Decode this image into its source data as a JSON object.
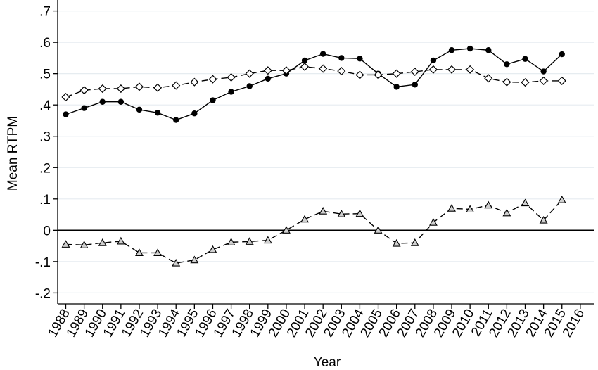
{
  "chart_data": {
    "type": "line",
    "title": "",
    "xlabel": "Year",
    "ylabel": "Mean RTPM",
    "x": [
      1988,
      1989,
      1990,
      1991,
      1992,
      1993,
      1994,
      1995,
      1996,
      1997,
      1998,
      1999,
      2000,
      2001,
      2002,
      2003,
      2004,
      2005,
      2006,
      2007,
      2008,
      2009,
      2010,
      2011,
      2012,
      2013,
      2014,
      2015
    ],
    "x_ticks": [
      "1988",
      "1989",
      "1990",
      "1991",
      "1992",
      "1993",
      "1994",
      "1995",
      "1996",
      "1997",
      "1998",
      "1999",
      "2000",
      "2001",
      "2002",
      "2003",
      "2004",
      "2005",
      "2006",
      "2007",
      "2008",
      "2009",
      "2010",
      "2011",
      "2012",
      "2013",
      "2014",
      "2015",
      "2016"
    ],
    "xlim": [
      1988,
      2016
    ],
    "y_ticks": [
      {
        "value": -0.2,
        "label": "-.2"
      },
      {
        "value": -0.1,
        "label": "-.1"
      },
      {
        "value": 0,
        "label": "0"
      },
      {
        "value": 0.1,
        "label": ".1"
      },
      {
        "value": 0.2,
        "label": ".2"
      },
      {
        "value": 0.3,
        "label": ".3"
      },
      {
        "value": 0.4,
        "label": ".4"
      },
      {
        "value": 0.5,
        "label": ".5"
      },
      {
        "value": 0.6,
        "label": ".6"
      },
      {
        "value": 0.7,
        "label": ".7"
      }
    ],
    "ylim": [
      -0.235,
      0.735
    ],
    "grid": true,
    "reference_line_y": 0,
    "series": [
      {
        "marker": "filled-circle",
        "line_style": "solid",
        "values": [
          0.37,
          0.39,
          0.41,
          0.41,
          0.385,
          0.375,
          0.352,
          0.373,
          0.415,
          0.442,
          0.46,
          0.484,
          0.5,
          0.542,
          0.563,
          0.55,
          0.548,
          0.5,
          0.458,
          0.465,
          0.542,
          0.575,
          0.58,
          0.575,
          0.53,
          0.547,
          0.507,
          0.562
        ]
      },
      {
        "marker": "hollow-diamond",
        "line_style": "dashed",
        "values": [
          0.425,
          0.447,
          0.452,
          0.452,
          0.458,
          0.455,
          0.462,
          0.473,
          0.482,
          0.488,
          0.5,
          0.51,
          0.51,
          0.522,
          0.516,
          0.508,
          0.496,
          0.496,
          0.5,
          0.506,
          0.513,
          0.513,
          0.513,
          0.485,
          0.473,
          0.472,
          0.477,
          0.477
        ]
      },
      {
        "marker": "hollow-triangle",
        "line_style": "dashed",
        "values": [
          -0.045,
          -0.047,
          -0.04,
          -0.035,
          -0.072,
          -0.072,
          -0.105,
          -0.095,
          -0.062,
          -0.038,
          -0.036,
          -0.032,
          0.0,
          0.035,
          0.061,
          0.052,
          0.053,
          0.0,
          -0.042,
          -0.04,
          0.025,
          0.07,
          0.067,
          0.08,
          0.055,
          0.087,
          0.032,
          0.097
        ]
      }
    ],
    "colors": {
      "background": "#ffffff",
      "grid": "#e6ecf0",
      "axis": "#000000",
      "series": "#000000"
    }
  }
}
